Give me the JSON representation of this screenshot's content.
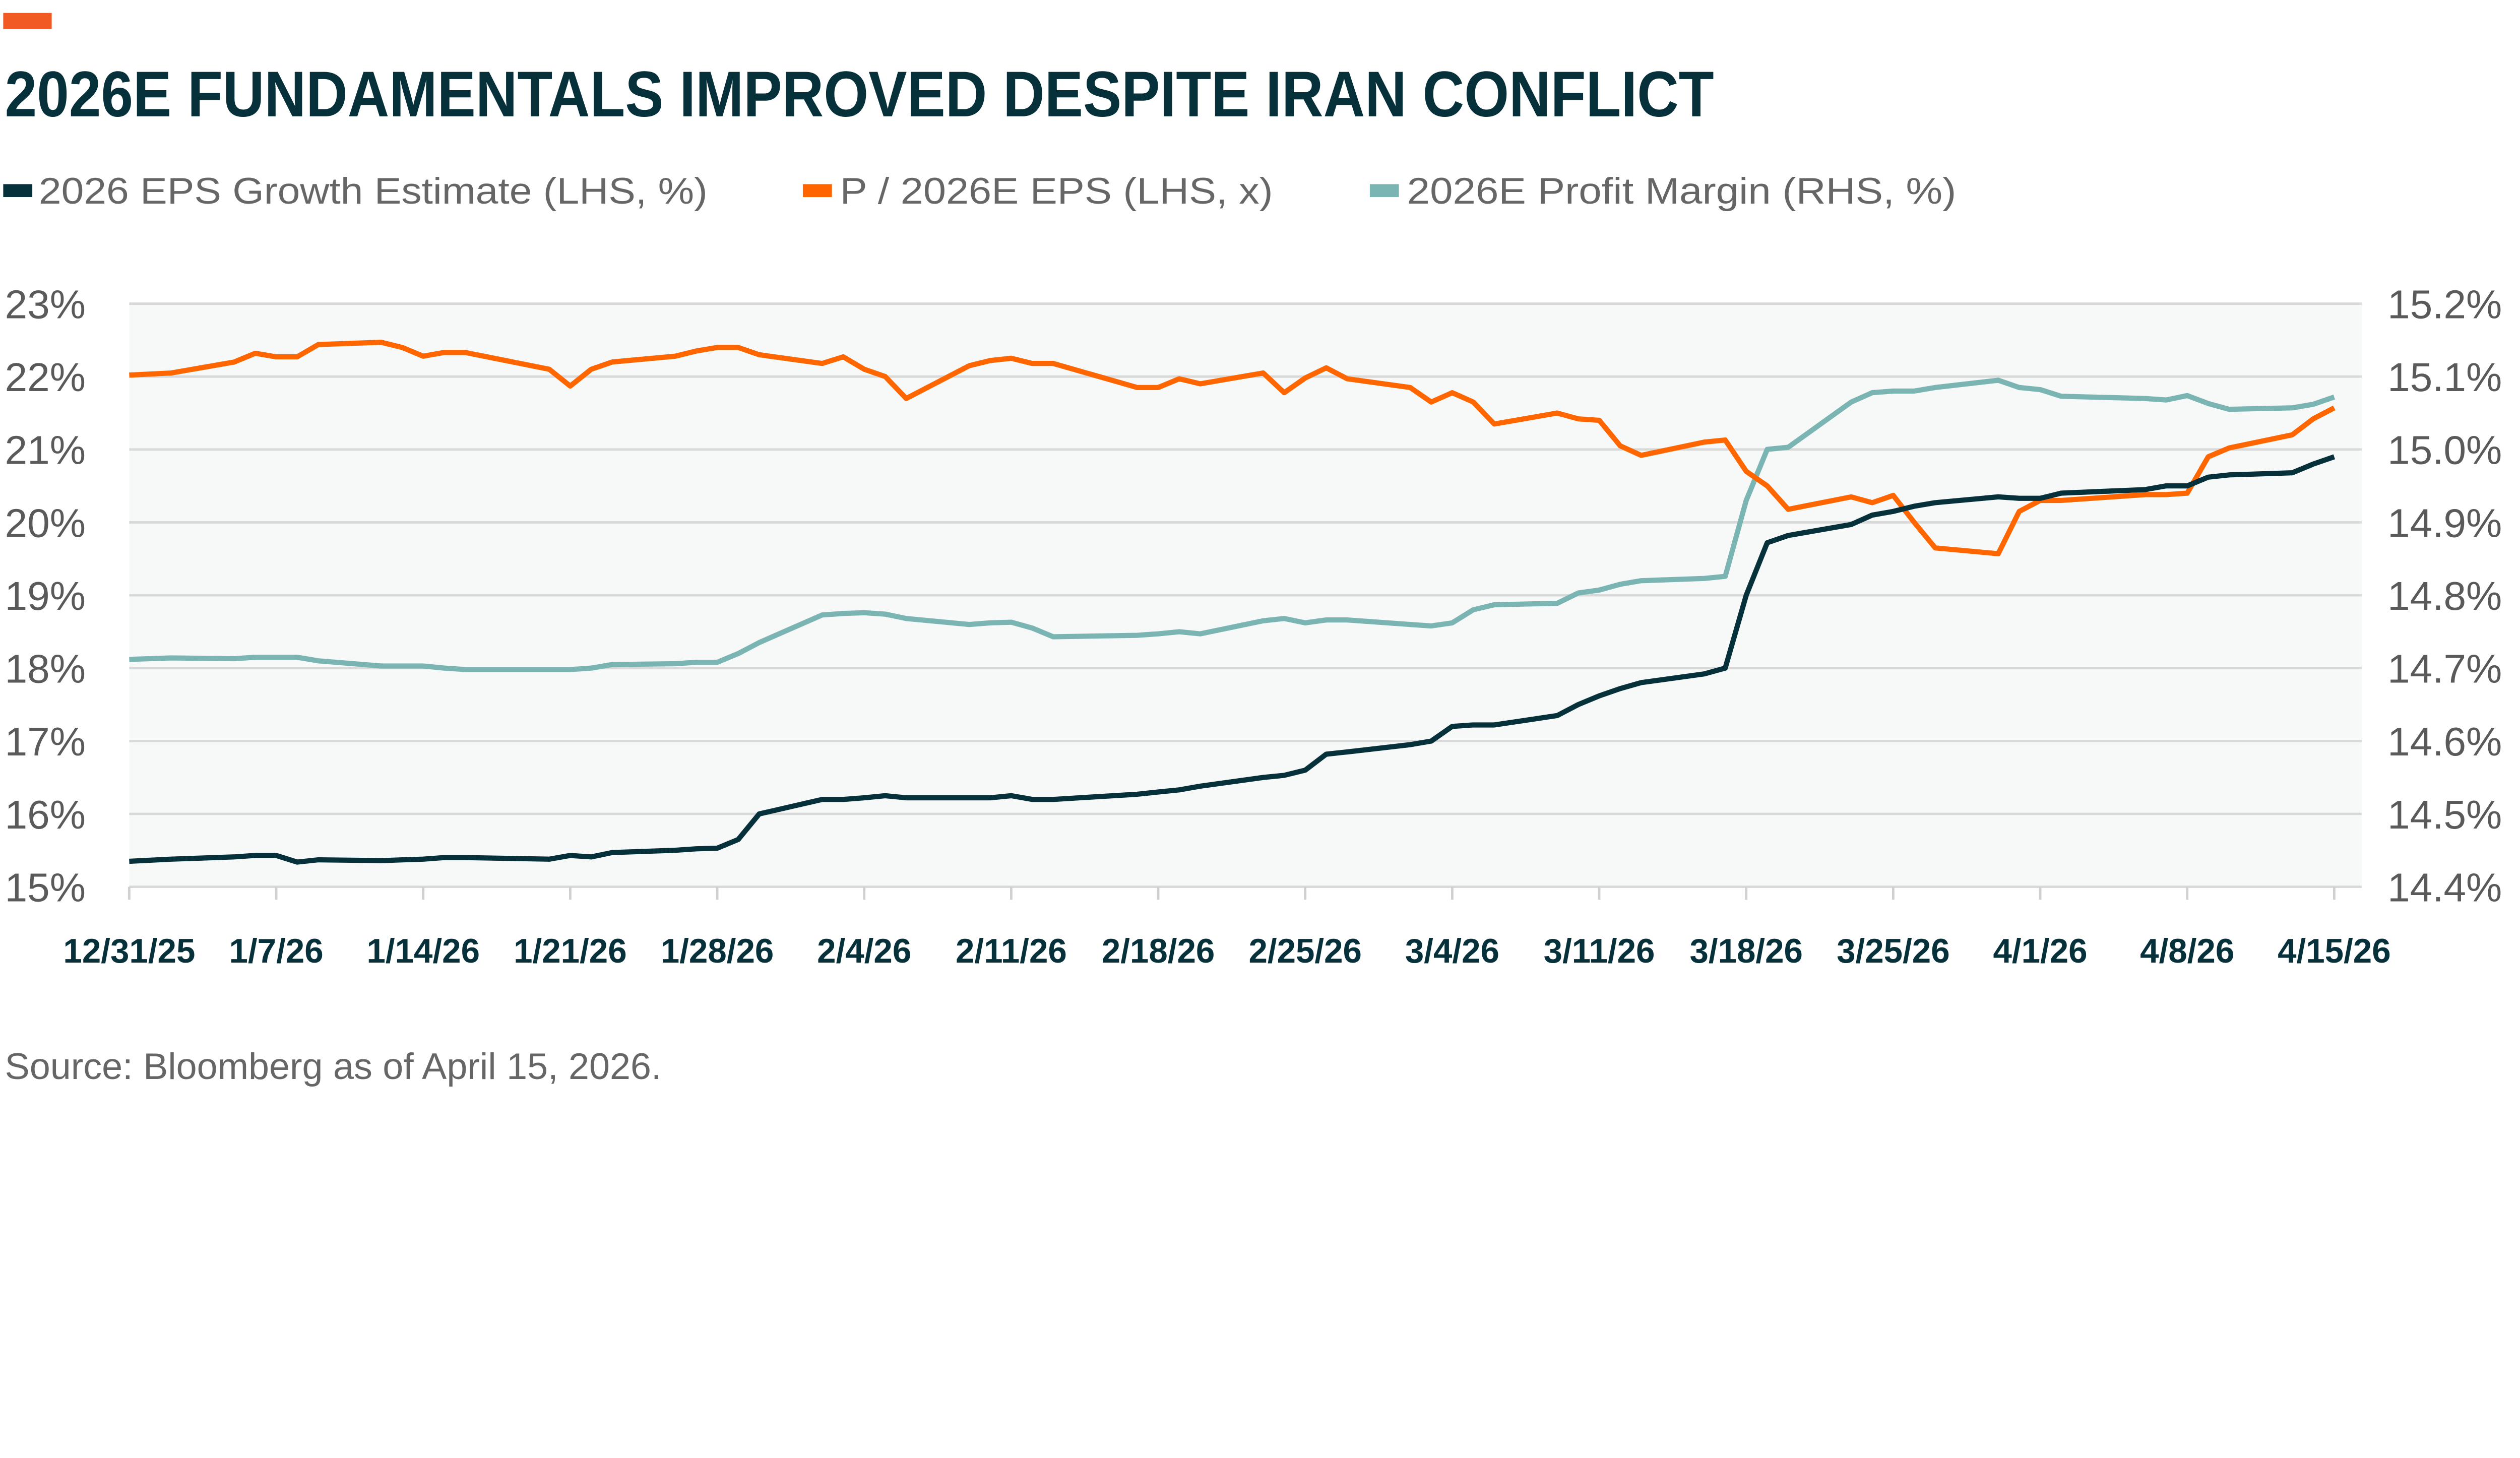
{
  "accent_color": "#f15a22",
  "chart_data": {
    "type": "line",
    "title": "2026E FUNDAMENTALS IMPROVED DESPITE IRAN CONFLICT",
    "source": "Source: Bloomberg as of April 15, 2026.",
    "legend_position": "top-left",
    "grid": true,
    "y_left": {
      "range": [
        15,
        23
      ],
      "ticks": [
        "15%",
        "16%",
        "17%",
        "18%",
        "19%",
        "20%",
        "21%",
        "22%",
        "23%"
      ]
    },
    "y_right": {
      "range": [
        14.4,
        15.2
      ],
      "ticks": [
        "14.4%",
        "14.5%",
        "14.6%",
        "14.7%",
        "14.8%",
        "14.9%",
        "15.0%",
        "15.1%",
        "15.2%"
      ]
    },
    "x_ticks": [
      {
        "date": "2025-12-31",
        "label": "12/31/25"
      },
      {
        "date": "2026-01-07",
        "label": "1/7/26"
      },
      {
        "date": "2026-01-14",
        "label": "1/14/26"
      },
      {
        "date": "2026-01-21",
        "label": "1/21/26"
      },
      {
        "date": "2026-01-28",
        "label": "1/28/26"
      },
      {
        "date": "2026-02-04",
        "label": "2/4/26"
      },
      {
        "date": "2026-02-11",
        "label": "2/11/26"
      },
      {
        "date": "2026-02-18",
        "label": "2/18/26"
      },
      {
        "date": "2026-02-25",
        "label": "2/25/26"
      },
      {
        "date": "2026-03-04",
        "label": "3/4/26"
      },
      {
        "date": "2026-03-11",
        "label": "3/11/26"
      },
      {
        "date": "2026-03-18",
        "label": "3/18/26"
      },
      {
        "date": "2026-03-25",
        "label": "3/25/26"
      },
      {
        "date": "2026-04-01",
        "label": "4/1/26"
      },
      {
        "date": "2026-04-08",
        "label": "4/8/26"
      },
      {
        "date": "2026-04-15",
        "label": "4/15/26"
      }
    ],
    "x": [
      "2025-12-31",
      "2026-01-02",
      "2026-01-05",
      "2026-01-06",
      "2026-01-07",
      "2026-01-08",
      "2026-01-09",
      "2026-01-12",
      "2026-01-13",
      "2026-01-14",
      "2026-01-15",
      "2026-01-16",
      "2026-01-20",
      "2026-01-21",
      "2026-01-22",
      "2026-01-23",
      "2026-01-26",
      "2026-01-27",
      "2026-01-28",
      "2026-01-29",
      "2026-01-30",
      "2026-02-02",
      "2026-02-03",
      "2026-02-04",
      "2026-02-05",
      "2026-02-06",
      "2026-02-09",
      "2026-02-10",
      "2026-02-11",
      "2026-02-12",
      "2026-02-13",
      "2026-02-17",
      "2026-02-18",
      "2026-02-19",
      "2026-02-20",
      "2026-02-23",
      "2026-02-24",
      "2026-02-25",
      "2026-02-26",
      "2026-02-27",
      "2026-03-02",
      "2026-03-03",
      "2026-03-04",
      "2026-03-05",
      "2026-03-06",
      "2026-03-09",
      "2026-03-10",
      "2026-03-11",
      "2026-03-12",
      "2026-03-13",
      "2026-03-16",
      "2026-03-17",
      "2026-03-18",
      "2026-03-19",
      "2026-03-20",
      "2026-03-23",
      "2026-03-24",
      "2026-03-25",
      "2026-03-26",
      "2026-03-27",
      "2026-03-30",
      "2026-03-31",
      "2026-04-01",
      "2026-04-02",
      "2026-04-06",
      "2026-04-07",
      "2026-04-08",
      "2026-04-09",
      "2026-04-10",
      "2026-04-13",
      "2026-04-14",
      "2026-04-15"
    ],
    "series": [
      {
        "name": "2026 EPS Growth Estimate (LHS, %)",
        "axis": "left",
        "color": "#06303a",
        "values": [
          15.35,
          15.38,
          15.41,
          15.43,
          15.43,
          15.34,
          15.37,
          15.36,
          15.37,
          15.38,
          15.4,
          15.4,
          15.38,
          15.43,
          15.41,
          15.47,
          15.5,
          15.52,
          15.53,
          15.65,
          16.0,
          16.2,
          16.2,
          16.22,
          16.25,
          16.22,
          16.22,
          16.22,
          16.25,
          16.2,
          16.2,
          16.27,
          16.3,
          16.33,
          16.38,
          16.5,
          16.53,
          16.6,
          16.82,
          16.85,
          16.95,
          17.0,
          17.2,
          17.22,
          17.22,
          17.35,
          17.5,
          17.62,
          17.72,
          17.8,
          17.92,
          18.0,
          19.0,
          19.72,
          19.82,
          19.97,
          20.1,
          20.15,
          20.22,
          20.27,
          20.35,
          20.33,
          20.33,
          20.4,
          20.45,
          20.5,
          20.5,
          20.62,
          20.65,
          20.68,
          20.8,
          20.9
        ]
      },
      {
        "name": "P / 2026E EPS (LHS, x)",
        "axis": "left",
        "color": "#ff6600",
        "values": [
          22.02,
          22.05,
          22.2,
          22.32,
          22.27,
          22.27,
          22.44,
          22.47,
          22.4,
          22.28,
          22.33,
          22.33,
          22.1,
          21.87,
          22.1,
          22.2,
          22.28,
          22.35,
          22.4,
          22.4,
          22.3,
          22.18,
          22.27,
          22.1,
          22.0,
          21.7,
          22.15,
          22.22,
          22.25,
          22.18,
          22.18,
          21.85,
          21.85,
          21.97,
          21.9,
          22.05,
          21.78,
          21.98,
          22.12,
          21.97,
          21.85,
          21.65,
          21.78,
          21.65,
          21.35,
          21.5,
          21.42,
          21.4,
          21.05,
          20.92,
          21.1,
          21.13,
          20.7,
          20.5,
          20.18,
          20.35,
          20.27,
          20.37,
          20.0,
          19.65,
          19.57,
          20.15,
          20.3,
          20.3,
          20.38,
          20.38,
          20.4,
          20.9,
          21.02,
          21.2,
          21.42,
          21.57
        ]
      },
      {
        "name": "2026E Profit Margin (RHS, %)",
        "axis": "right",
        "color": "#7bb5b3",
        "values": [
          14.712,
          14.714,
          14.713,
          14.715,
          14.715,
          14.715,
          14.71,
          14.703,
          14.703,
          14.703,
          14.7,
          14.698,
          14.698,
          14.698,
          14.7,
          14.705,
          14.706,
          14.708,
          14.708,
          14.72,
          14.735,
          14.773,
          14.775,
          14.776,
          14.774,
          14.768,
          14.76,
          14.762,
          14.763,
          14.755,
          14.743,
          14.745,
          14.747,
          14.75,
          14.747,
          14.765,
          14.768,
          14.762,
          14.766,
          14.766,
          14.76,
          14.758,
          14.762,
          14.78,
          14.787,
          14.789,
          14.803,
          14.807,
          14.815,
          14.82,
          14.823,
          14.826,
          14.93,
          15.0,
          15.003,
          15.065,
          15.078,
          15.08,
          15.08,
          15.085,
          15.095,
          15.085,
          15.082,
          15.073,
          15.07,
          15.068,
          15.074,
          15.063,
          15.055,
          15.057,
          15.062,
          15.072
        ]
      }
    ]
  }
}
